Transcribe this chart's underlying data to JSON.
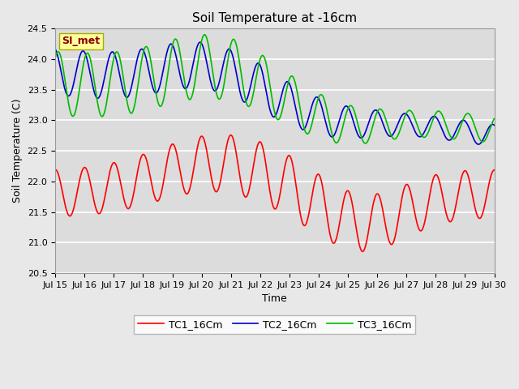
{
  "title": "Soil Temperature at -16cm",
  "xlabel": "Time",
  "ylabel": "Soil Temperature (C)",
  "xlim": [
    0,
    15
  ],
  "ylim": [
    20.5,
    24.5
  ],
  "yticks": [
    20.5,
    21.0,
    21.5,
    22.0,
    22.5,
    23.0,
    23.5,
    24.0,
    24.5
  ],
  "xtick_labels": [
    "Jul 15",
    "Jul 16",
    "Jul 17",
    "Jul 18",
    "Jul 19",
    "Jul 20",
    "Jul 21",
    "Jul 22",
    "Jul 23",
    "Jul 24",
    "Jul 25",
    "Jul 26",
    "Jul 27",
    "Jul 28",
    "Jul 29",
    "Jul 30"
  ],
  "legend_labels": [
    "TC1_16Cm",
    "TC2_16Cm",
    "TC3_16Cm"
  ],
  "line_colors": [
    "#ff0000",
    "#0000cc",
    "#00bb00"
  ],
  "annotation_text": "SI_met",
  "annotation_box_color": "#ffff99",
  "annotation_text_color": "#880000",
  "fig_facecolor": "#e8e8e8",
  "ax_facecolor": "#dcdcdc",
  "grid_color": "#ffffff",
  "title_fontsize": 11,
  "label_fontsize": 9,
  "tick_fontsize": 8,
  "legend_fontsize": 9,
  "line_width": 1.2
}
